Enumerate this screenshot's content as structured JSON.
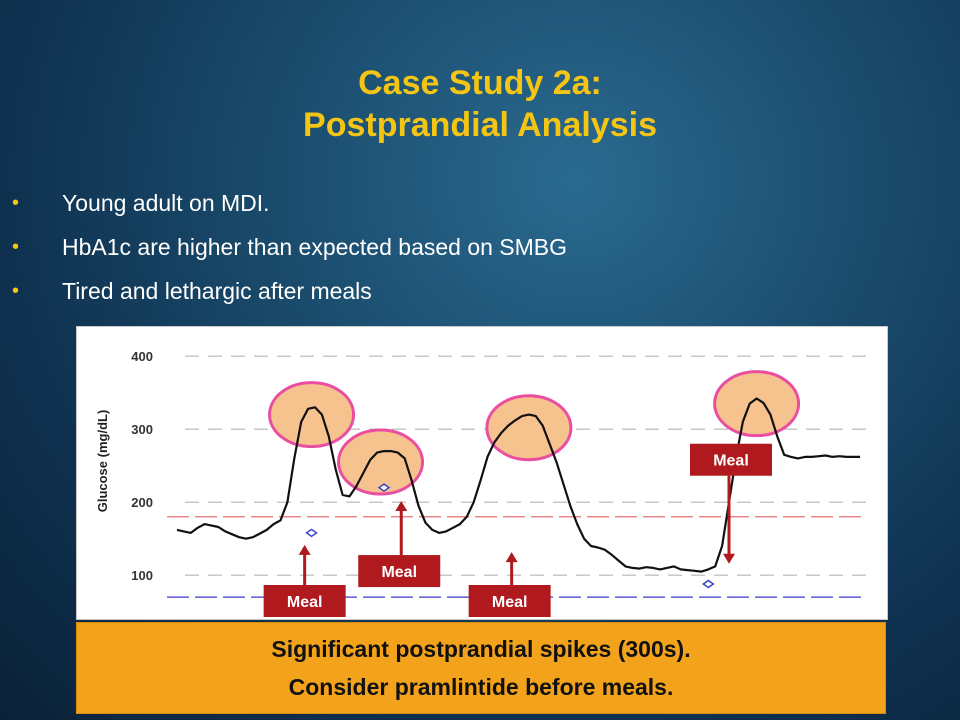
{
  "slide": {
    "title_line1": "Case Study 2a:",
    "title_line2": "Postprandial Analysis",
    "bullets": [
      "Young adult on MDI.",
      "HbA1c are higher than expected based on SMBG",
      "Tired and lethargic after meals"
    ],
    "callout_line1": "Significant postprandial spikes (300s).",
    "callout_line2": "Consider pramlintide before meals."
  },
  "colors": {
    "title": "#f5c514",
    "bullet_text": "#ffffff",
    "callout_bg": "#f3a21c",
    "meal_box": "#b0191e",
    "highlight_ring": "#e94ea0",
    "highlight_fill": "#f6c28e",
    "upper_target_line": "#e06060",
    "lower_target_line": "#3a3ad0",
    "glucose_trace": "#111111"
  },
  "chart_data": {
    "type": "line",
    "title": "",
    "xlabel": "",
    "ylabel": "Glucose (mg/dL)",
    "y_ticks": [
      100,
      200,
      300,
      400
    ],
    "ylim": [
      40,
      440
    ],
    "xlim": [
      0,
      100
    ],
    "grid": "horizontal dashed",
    "target_lines": [
      {
        "value": 180,
        "style": "dashed red"
      },
      {
        "value": 70,
        "style": "dashed blue"
      }
    ],
    "series": [
      {
        "x": [
          0,
          1,
          2,
          3,
          4,
          5,
          6,
          7,
          8,
          9,
          10,
          11,
          12,
          13,
          14,
          15,
          16,
          17,
          18,
          19,
          20,
          21,
          22,
          23,
          24,
          25,
          26,
          27,
          28,
          29,
          30,
          31,
          32,
          33,
          34,
          35,
          36,
          37,
          38,
          39,
          40,
          41,
          42,
          43,
          44,
          45,
          46,
          47,
          48,
          49,
          50,
          51,
          52,
          53,
          54,
          55,
          56,
          57,
          58,
          59,
          60,
          61,
          62,
          63,
          64,
          65,
          66,
          67,
          68,
          69,
          70,
          71,
          72,
          73,
          74,
          75,
          76,
          77,
          78,
          79,
          80,
          81,
          82,
          83,
          84,
          85,
          86,
          87,
          88,
          89,
          90,
          91,
          92,
          93,
          94,
          95,
          96,
          97,
          98,
          99
        ],
        "values": [
          162,
          160,
          158,
          165,
          170,
          168,
          166,
          160,
          156,
          152,
          150,
          152,
          157,
          162,
          170,
          175,
          200,
          260,
          310,
          328,
          330,
          320,
          290,
          245,
          210,
          208,
          222,
          240,
          258,
          268,
          270,
          270,
          268,
          260,
          230,
          195,
          172,
          162,
          158,
          160,
          165,
          170,
          180,
          200,
          230,
          262,
          282,
          295,
          305,
          312,
          318,
          320,
          318,
          305,
          280,
          255,
          225,
          195,
          170,
          150,
          140,
          138,
          135,
          128,
          120,
          112,
          110,
          109,
          111,
          110,
          108,
          110,
          112,
          108,
          107,
          106,
          105,
          108,
          112,
          140,
          200,
          260,
          310,
          335,
          342,
          336,
          320,
          290,
          265,
          262,
          260,
          262,
          262,
          263,
          264,
          262,
          263,
          262,
          262,
          262
        ]
      }
    ],
    "highlighted_peaks": [
      {
        "x": 19.5,
        "y": 320
      },
      {
        "x": 29.5,
        "y": 255
      },
      {
        "x": 51,
        "y": 302
      },
      {
        "x": 84,
        "y": 335
      }
    ],
    "meal_markers": [
      {
        "label": "Meal",
        "x": 18.5,
        "y": 158
      },
      {
        "label": "Meal",
        "x": 32.5,
        "y": 218
      },
      {
        "label": "Meal",
        "x": 48.5,
        "y": 148
      },
      {
        "label": "Meal",
        "x": 80,
        "y": 102
      }
    ],
    "smbg_points": [
      {
        "x": 19.5,
        "y": 158
      },
      {
        "x": 30,
        "y": 220
      },
      {
        "x": 77,
        "y": 88
      }
    ]
  }
}
